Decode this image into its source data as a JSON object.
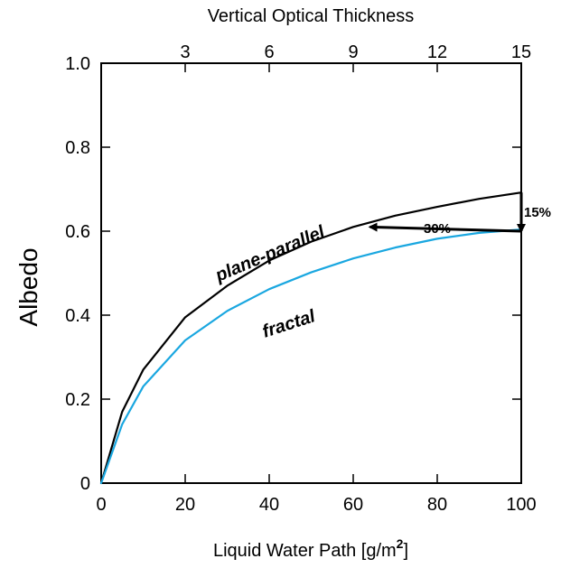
{
  "chart_data": {
    "type": "line",
    "xlabel": "Liquid Water Path [g/m",
    "xlabel_sup": "2",
    "xlabel_close": "]",
    "ylabel": "Albedo",
    "top_axis_label": "Vertical Optical Thickness",
    "xlim": [
      0,
      100
    ],
    "ylim": [
      0,
      1.0
    ],
    "x_ticks": [
      0,
      20,
      40,
      60,
      80,
      100
    ],
    "x_tick_labels": [
      "0",
      "20",
      "40",
      "60",
      "80",
      "100"
    ],
    "y_ticks": [
      0,
      0.2,
      0.4,
      0.6,
      0.8,
      1.0
    ],
    "y_tick_labels": [
      "0",
      "0.2",
      "0.4",
      "0.6",
      "0.8",
      "1.0"
    ],
    "top_ticks": [
      3,
      6,
      9,
      12,
      15
    ],
    "top_tick_labels": [
      "3",
      "6",
      "9",
      "12",
      "15"
    ],
    "top_axis_range": [
      0,
      15
    ],
    "grid": false,
    "series": [
      {
        "name": "plane-parallel",
        "color": "#000000",
        "x": [
          0,
          5,
          10,
          20,
          30,
          40,
          50,
          60,
          70,
          80,
          90,
          100
        ],
        "y": [
          0,
          0.17,
          0.27,
          0.395,
          0.47,
          0.53,
          0.575,
          0.61,
          0.637,
          0.658,
          0.677,
          0.692
        ]
      },
      {
        "name": "fractal",
        "color": "#1aa7e0",
        "x": [
          0,
          5,
          10,
          20,
          30,
          40,
          50,
          60,
          70,
          80,
          90,
          100
        ],
        "y": [
          0,
          0.14,
          0.23,
          0.34,
          0.41,
          0.462,
          0.502,
          0.535,
          0.561,
          0.582,
          0.596,
          0.604
        ]
      }
    ],
    "annotations": [
      {
        "text": "30%",
        "type": "horizontal-arrow",
        "from": [
          100,
          0.6
        ],
        "to": [
          64,
          0.61
        ]
      },
      {
        "text": "15%",
        "type": "vertical-arrow",
        "from": [
          100,
          0.692
        ],
        "to": [
          100,
          0.6
        ]
      }
    ]
  }
}
